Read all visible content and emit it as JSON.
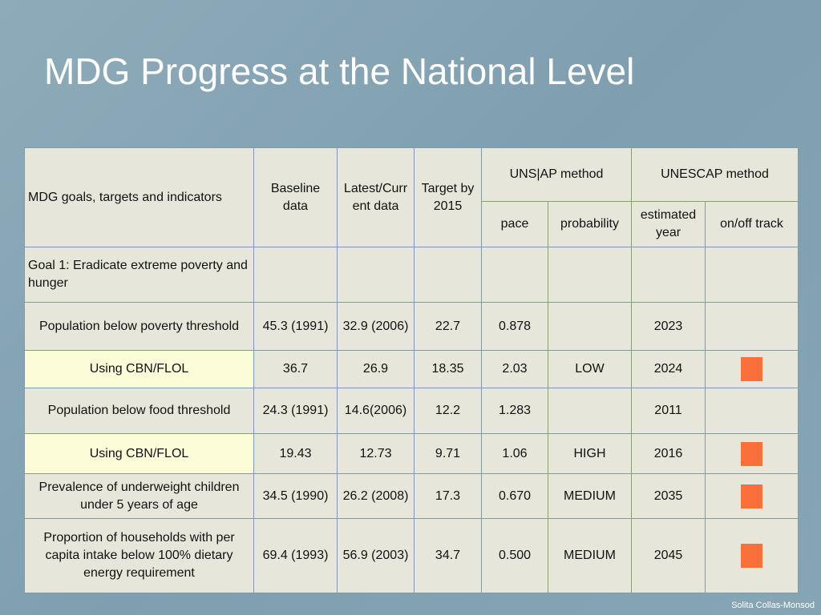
{
  "title": "MDG Progress at the National Level",
  "table": {
    "header": {
      "goal": "MDG goals, targets and indicators",
      "baseline": "Baseline data",
      "latest": "Latest/Current data",
      "target": "Target by 2015",
      "unsap": "UNS|AP method",
      "unescap": "UNESCAP method",
      "pace": "pace",
      "probability": "probability",
      "estimated_year": "estimated year",
      "track": "on/off track"
    },
    "rows": [
      [
        "Goal 1: Eradicate extreme poverty and hunger",
        null,
        null,
        null,
        null,
        null,
        null,
        null
      ],
      [
        "Population below poverty threshold",
        "45.3 (1991)",
        "32.9 (2006)",
        "22.7",
        "0.878",
        null,
        "2023",
        null
      ],
      [
        "Using CBN/FLOL",
        "36.7",
        "26.9",
        "18.35",
        "2.03",
        "LOW",
        "2024",
        null
      ],
      [
        "Population below food threshold",
        "24.3 (1991)",
        "14.6(2006)",
        "12.2",
        "1.283",
        null,
        "2011",
        null
      ],
      [
        "Using CBN/FLOL",
        "19.43",
        "12.73",
        "9.71",
        "1.06",
        "HIGH",
        "2016",
        null
      ],
      [
        "Prevalence of underweight children under 5 years of age",
        "34.5 (1990)",
        "26.2 (2008)",
        "17.3",
        "0.670",
        "MEDIUM",
        "2035",
        null
      ],
      [
        "Proportion of households with per capita intake below 100% dietary energy requirement",
        "69.4 (1993)",
        "56.9 (2003)",
        "34.7",
        "0.500",
        "MEDIUM",
        "2045",
        null
      ]
    ]
  },
  "footer": "Solita Collas-Monsod"
}
